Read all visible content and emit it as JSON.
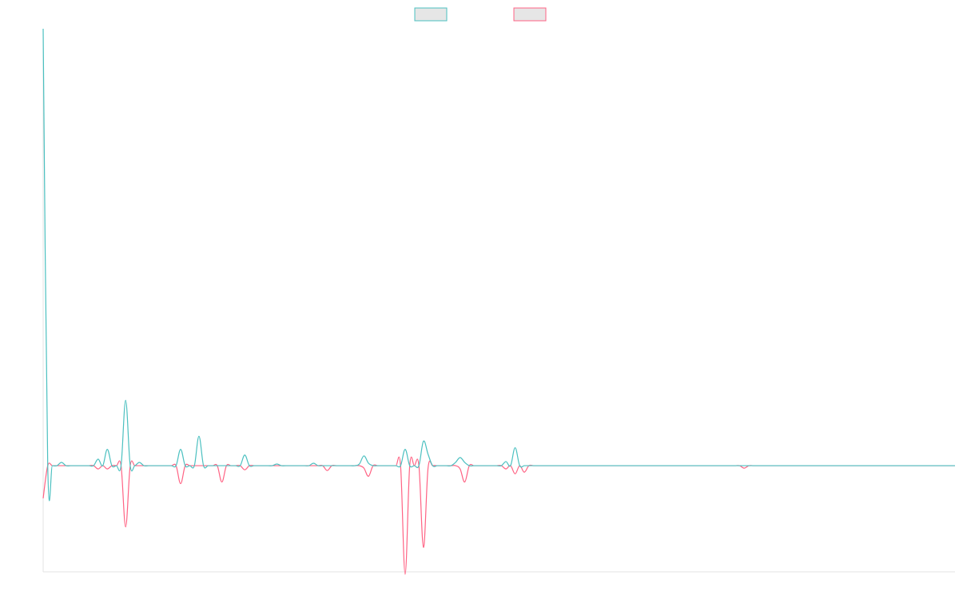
{
  "chart_data": {
    "type": "line",
    "title": "",
    "xlabel": "",
    "ylabel": "",
    "ylim": [
      -130,
      535
    ],
    "grid": false,
    "legend": {
      "placement": "top-center",
      "entries": [
        {
          "name": "",
          "color": "#4bc0c0"
        },
        {
          "name": "",
          "color": "#ff6384"
        }
      ]
    },
    "x_count": 200,
    "series": [
      {
        "name": "",
        "color": "#4bc0c0",
        "points": [
          [
            0,
            535
          ],
          [
            1,
            0
          ],
          [
            4,
            4
          ],
          [
            12,
            8
          ],
          [
            14,
            20
          ],
          [
            18,
            80
          ],
          [
            21,
            4
          ],
          [
            30,
            20
          ],
          [
            34,
            36
          ],
          [
            44,
            13
          ],
          [
            51,
            2
          ],
          [
            59,
            3
          ],
          [
            69,
            2
          ],
          [
            70,
            12
          ],
          [
            71,
            3
          ],
          [
            79,
            20
          ],
          [
            83,
            30
          ],
          [
            84,
            14
          ],
          [
            90,
            4
          ],
          [
            91,
            10
          ],
          [
            92,
            4
          ],
          [
            101,
            5
          ],
          [
            103,
            22
          ]
        ]
      },
      {
        "name": "",
        "color": "#ff6384",
        "points": [
          [
            0,
            -40
          ],
          [
            12,
            -4
          ],
          [
            14,
            -4
          ],
          [
            18,
            -75
          ],
          [
            30,
            -22
          ],
          [
            39,
            -20
          ],
          [
            44,
            -5
          ],
          [
            62,
            -6
          ],
          [
            70,
            -3
          ],
          [
            71,
            -13
          ],
          [
            79,
            -133
          ],
          [
            83,
            -100
          ],
          [
            84,
            -3
          ],
          [
            91,
            -4
          ],
          [
            92,
            -20
          ],
          [
            101,
            -4
          ],
          [
            103,
            -10
          ],
          [
            105,
            -8
          ],
          [
            153,
            -3
          ]
        ]
      }
    ]
  }
}
